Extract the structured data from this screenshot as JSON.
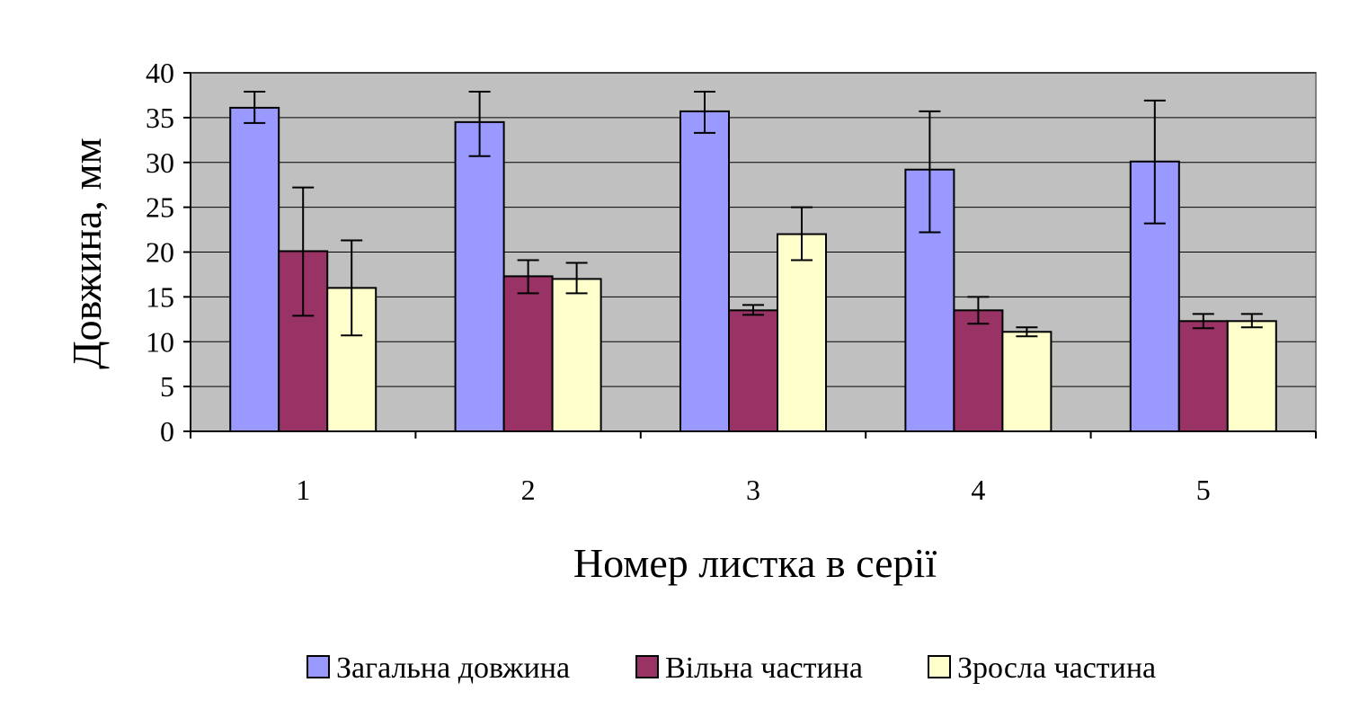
{
  "chart_data": {
    "type": "bar",
    "title": "",
    "xlabel": "Номер листка в серії",
    "ylabel": "Довжина, мм",
    "categories": [
      "1",
      "2",
      "3",
      "4",
      "5"
    ],
    "ylim": [
      0,
      40
    ],
    "yticks": [
      0,
      5,
      10,
      15,
      20,
      25,
      30,
      35,
      40
    ],
    "grid": true,
    "legend_position": "bottom",
    "plot_background": "#c0c0c0",
    "series": [
      {
        "name": "Загальна довжина",
        "color": "#9999ff",
        "values": [
          36.1,
          34.5,
          35.7,
          29.2,
          30.1
        ],
        "err_low": [
          34.4,
          30.7,
          33.3,
          22.2,
          23.2
        ],
        "err_high": [
          37.9,
          37.9,
          37.9,
          35.7,
          36.9
        ]
      },
      {
        "name": "Вільна частина",
        "color": "#993366",
        "values": [
          20.1,
          17.3,
          13.5,
          13.5,
          12.3
        ],
        "err_low": [
          12.9,
          15.4,
          13.0,
          12.0,
          11.5
        ],
        "err_high": [
          27.2,
          19.1,
          14.1,
          15.0,
          13.1
        ]
      },
      {
        "name": "Зросла частина",
        "color": "#ffffcc",
        "values": [
          16.0,
          17.0,
          22.0,
          11.1,
          12.3
        ],
        "err_low": [
          10.7,
          15.4,
          19.1,
          10.6,
          11.6
        ],
        "err_high": [
          21.3,
          18.8,
          25.0,
          11.6,
          13.1
        ]
      }
    ]
  }
}
